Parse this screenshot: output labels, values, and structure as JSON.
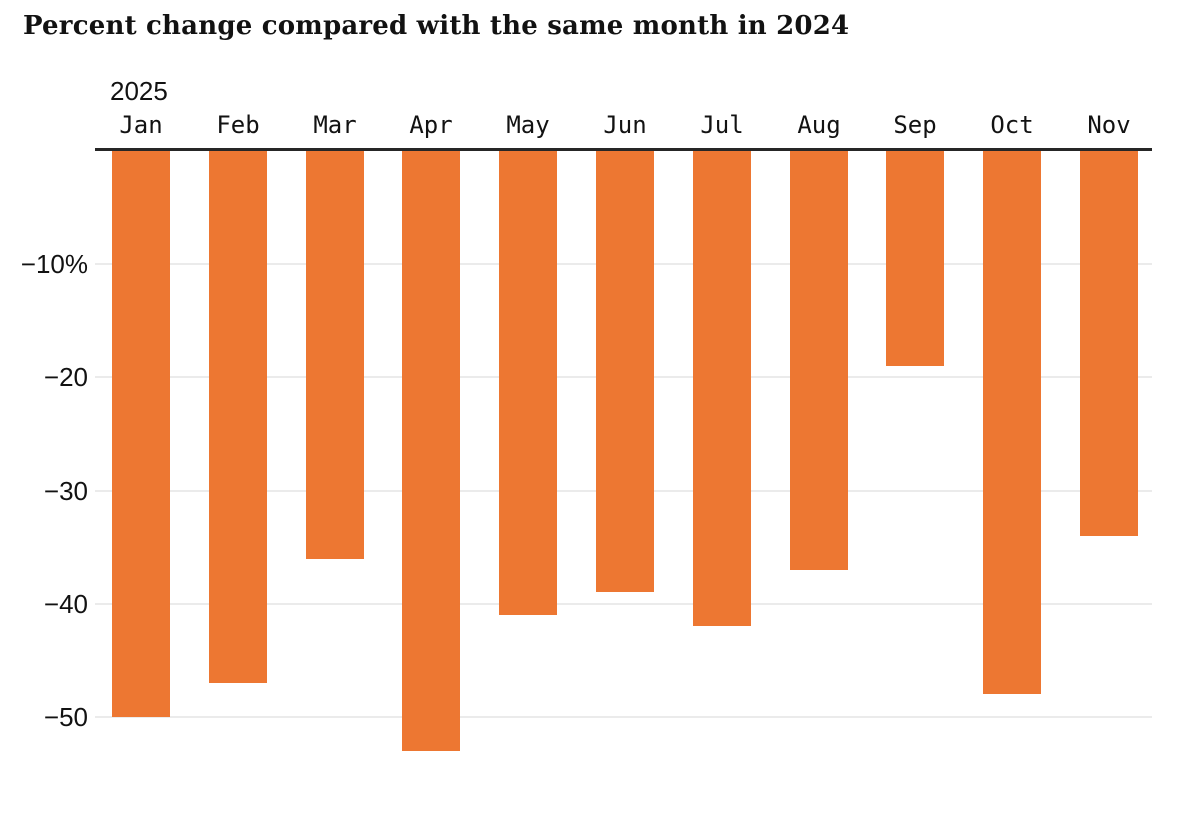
{
  "page": {
    "background_color": "#ffffff"
  },
  "chart_data": {
    "type": "bar",
    "title": "Percent change compared with the same month in 2024",
    "year_label": "2025",
    "categories": [
      "Jan",
      "Feb",
      "Mar",
      "Apr",
      "May",
      "Jun",
      "Jul",
      "Aug",
      "Sep",
      "Oct",
      "Nov"
    ],
    "values": [
      -50,
      -47,
      -36,
      -53,
      -41,
      -39,
      -42,
      -37,
      -19,
      -48,
      -34
    ],
    "unit": "percent",
    "xlabel": "",
    "ylabel": "",
    "ylim": [
      -55,
      0
    ],
    "y_ticks": [
      {
        "value": -10,
        "label": "−10%"
      },
      {
        "value": -20,
        "label": "−20"
      },
      {
        "value": -30,
        "label": "−30"
      },
      {
        "value": -40,
        "label": "−40"
      },
      {
        "value": -50,
        "label": "−50"
      }
    ],
    "grid": true,
    "legend_position": "none",
    "orientation": "vertical-negative",
    "colors": {
      "bar": "#ED7732",
      "zero_axis_line": "#262626",
      "gridline": "#EBEBEB",
      "text": "#121212"
    }
  }
}
